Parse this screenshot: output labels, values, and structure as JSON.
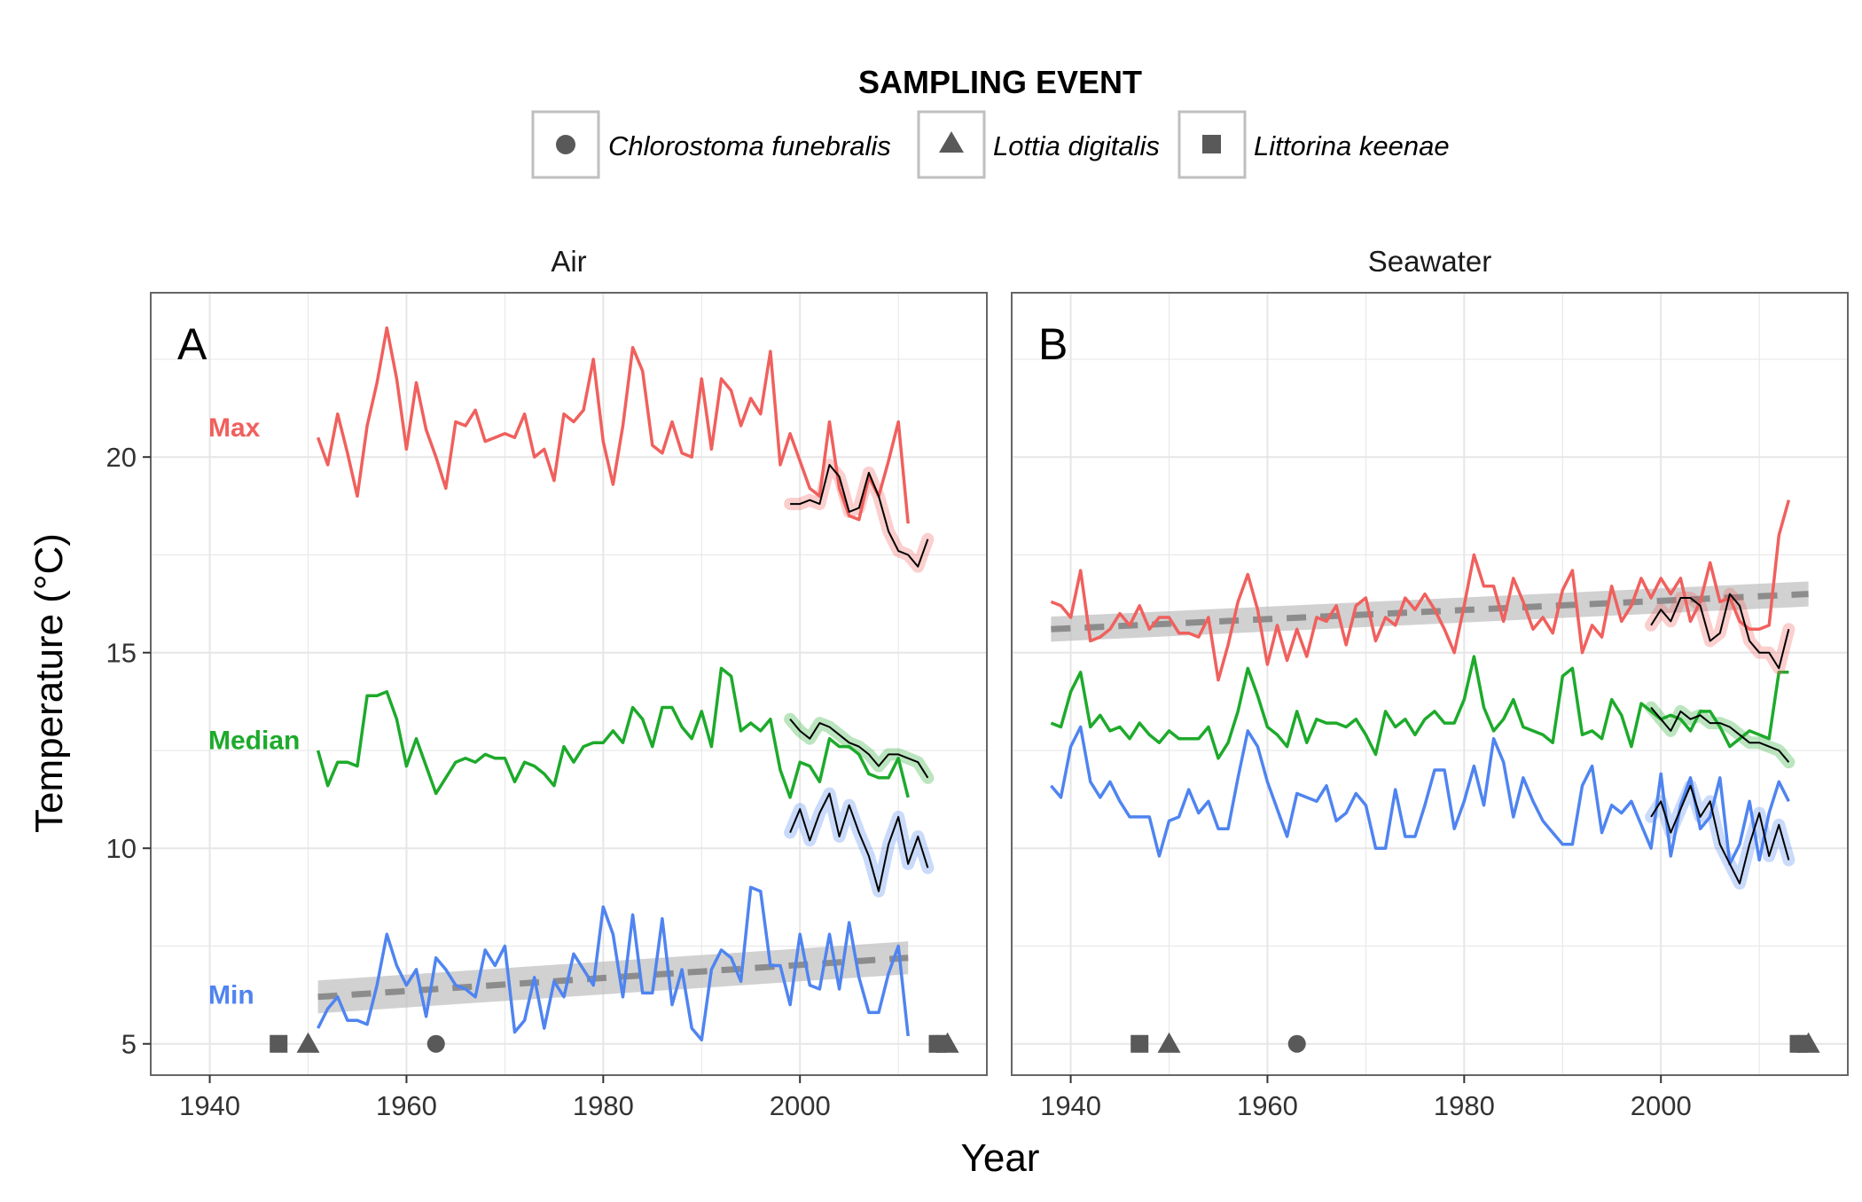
{
  "legend": {
    "title": "SAMPLING EVENT",
    "items": [
      {
        "label": "Chlorostoma funebralis",
        "shape": "circle"
      },
      {
        "label": "Lottia digitalis",
        "shape": "triangle"
      },
      {
        "label": "Littorina keenae",
        "shape": "square"
      }
    ],
    "position": "top"
  },
  "series_labels": [
    {
      "text": "Max",
      "color": "#F0605D"
    },
    {
      "text": "Median",
      "color": "#1DAA2B"
    },
    {
      "text": "Min",
      "color": "#4F84F0"
    }
  ],
  "colors": {
    "max": "#F0605D",
    "median": "#1DAA2B",
    "min": "#4F84F0",
    "rolling": "#000000",
    "trend": "#8c8c8c",
    "trend_band": "#bdbdbd",
    "marker": "#595959",
    "grid": "#e6e6e6",
    "panel_border": "#666666"
  },
  "axes": {
    "xlabel": "Year",
    "ylabel": "Temperature (°C)"
  },
  "chart_data": [
    {
      "type": "line",
      "panel_letter": "A",
      "strip_title": "Air",
      "x_ticks": [
        1940,
        1960,
        1980,
        2000
      ],
      "y_ticks": [
        5,
        10,
        15,
        20
      ],
      "xlim": [
        1934,
        2019
      ],
      "ylim": [
        4.2,
        24.2
      ],
      "grid": true,
      "series": [
        {
          "key": "max",
          "x_start": 1951,
          "values": [
            20.5,
            19.8,
            21.1,
            20.1,
            19.0,
            20.8,
            21.9,
            23.3,
            22.0,
            20.2,
            21.9,
            20.7,
            20.0,
            19.2,
            20.9,
            20.8,
            21.2,
            20.4,
            20.5,
            20.6,
            20.5,
            21.1,
            20.0,
            20.2,
            19.4,
            21.1,
            20.9,
            21.2,
            22.5,
            20.4,
            19.3,
            20.8,
            22.8,
            22.2,
            20.3,
            20.1,
            20.9,
            20.1,
            20.0,
            22.0,
            20.2,
            22.0,
            21.7,
            20.8,
            21.5,
            21.1,
            22.7,
            19.8,
            20.6,
            19.9,
            19.2,
            19.0,
            20.9,
            19.2,
            18.5,
            18.4,
            19.5,
            19.0,
            19.9,
            20.9,
            18.3
          ]
        },
        {
          "key": "median",
          "x_start": 1951,
          "values": [
            12.5,
            11.6,
            12.2,
            12.2,
            12.1,
            13.9,
            13.9,
            14.0,
            13.3,
            12.1,
            12.8,
            12.1,
            11.4,
            11.8,
            12.2,
            12.3,
            12.2,
            12.4,
            12.3,
            12.3,
            11.7,
            12.2,
            12.1,
            11.9,
            11.6,
            12.6,
            12.2,
            12.6,
            12.7,
            12.7,
            13.0,
            12.7,
            13.6,
            13.3,
            12.6,
            13.6,
            13.6,
            13.1,
            12.8,
            13.5,
            12.6,
            14.6,
            14.4,
            13.0,
            13.2,
            13.0,
            13.3,
            12.0,
            11.3,
            12.2,
            12.1,
            11.7,
            12.8,
            12.6,
            12.6,
            12.4,
            11.9,
            11.8,
            11.8,
            12.3,
            11.3
          ]
        },
        {
          "key": "min",
          "x_start": 1951,
          "values": [
            5.4,
            5.9,
            6.2,
            5.6,
            5.6,
            5.5,
            6.5,
            7.8,
            7.0,
            6.5,
            6.9,
            5.7,
            7.2,
            6.9,
            6.5,
            6.4,
            6.2,
            7.4,
            7.0,
            7.5,
            5.3,
            5.6,
            6.7,
            5.4,
            6.6,
            6.2,
            7.3,
            6.9,
            6.5,
            8.5,
            7.8,
            6.2,
            8.3,
            6.3,
            6.3,
            8.2,
            6.0,
            6.9,
            5.4,
            5.1,
            6.9,
            7.4,
            7.2,
            6.6,
            9.0,
            8.9,
            7.0,
            7.0,
            6.0,
            7.8,
            6.5,
            6.4,
            7.8,
            6.4,
            8.1,
            6.7,
            5.8,
            5.8,
            6.8,
            7.5,
            5.2
          ]
        },
        {
          "key": "max_rolling",
          "x_start": 1999,
          "values": [
            18.8,
            18.8,
            18.9,
            18.8,
            19.8,
            19.5,
            18.6,
            18.7,
            19.6,
            19.0,
            18.1,
            17.6,
            17.5,
            17.2,
            17.9
          ]
        },
        {
          "key": "median_rolling",
          "x_start": 1999,
          "values": [
            13.3,
            13.0,
            12.8,
            13.2,
            13.1,
            12.9,
            12.7,
            12.6,
            12.4,
            12.1,
            12.4,
            12.4,
            12.3,
            12.2,
            11.8
          ]
        },
        {
          "key": "min_rolling",
          "x_start": 1999,
          "values": [
            10.4,
            11.0,
            10.2,
            10.9,
            11.4,
            10.3,
            11.1,
            10.4,
            9.8,
            8.9,
            10.1,
            10.8,
            9.6,
            10.3,
            9.5
          ]
        }
      ],
      "trend": {
        "key": "min",
        "x": [
          1951,
          2011
        ],
        "y": [
          6.2,
          7.2
        ],
        "band_halfwidth": 0.42
      },
      "markers": [
        {
          "shape": "square",
          "x": 1947,
          "y": 5
        },
        {
          "shape": "triangle",
          "x": 1950,
          "y": 5
        },
        {
          "shape": "circle",
          "x": 1963,
          "y": 5
        },
        {
          "shape": "circle",
          "x": 2014,
          "y": 5
        },
        {
          "shape": "square",
          "x": 2014,
          "y": 5
        },
        {
          "shape": "triangle",
          "x": 2015,
          "y": 5
        }
      ]
    },
    {
      "type": "line",
      "panel_letter": "B",
      "strip_title": "Seawater",
      "x_ticks": [
        1940,
        1960,
        1980,
        2000
      ],
      "y_ticks": [
        5,
        10,
        15,
        20
      ],
      "xlim": [
        1934,
        2019
      ],
      "ylim": [
        4.2,
        24.2
      ],
      "grid": true,
      "series": [
        {
          "key": "max",
          "x_start": 1938,
          "values": [
            16.3,
            16.2,
            15.9,
            17.1,
            15.3,
            15.4,
            15.6,
            16.0,
            15.7,
            16.2,
            15.6,
            15.9,
            15.9,
            15.5,
            15.5,
            15.4,
            15.9,
            14.3,
            15.2,
            16.3,
            17.0,
            16.1,
            14.7,
            15.7,
            14.8,
            15.6,
            14.9,
            15.9,
            15.8,
            16.2,
            15.2,
            16.2,
            16.4,
            15.3,
            15.9,
            15.7,
            16.4,
            16.1,
            16.5,
            16.1,
            15.6,
            15.0,
            16.2,
            17.5,
            16.7,
            16.7,
            15.8,
            16.9,
            16.3,
            15.6,
            15.9,
            15.5,
            16.6,
            17.1,
            15.0,
            15.7,
            15.4,
            16.7,
            15.8,
            16.2,
            16.9,
            16.4,
            16.9,
            16.5,
            16.9,
            15.8,
            16.3,
            17.3,
            16.3,
            16.4,
            15.8,
            15.6,
            15.6,
            15.7,
            18.0,
            18.9
          ]
        },
        {
          "key": "median",
          "x_start": 1938,
          "values": [
            13.2,
            13.1,
            14.0,
            14.5,
            13.1,
            13.4,
            13.0,
            13.1,
            12.8,
            13.2,
            12.9,
            12.7,
            13.0,
            12.8,
            12.8,
            12.8,
            13.1,
            12.3,
            12.7,
            13.5,
            14.6,
            13.9,
            13.1,
            12.9,
            12.6,
            13.5,
            12.7,
            13.3,
            13.2,
            13.2,
            13.1,
            13.3,
            12.9,
            12.4,
            13.5,
            13.1,
            13.3,
            12.9,
            13.3,
            13.5,
            13.2,
            13.2,
            13.8,
            14.9,
            13.6,
            13.0,
            13.3,
            13.8,
            13.1,
            13.0,
            12.9,
            12.7,
            14.4,
            14.6,
            12.9,
            13.0,
            12.8,
            13.8,
            13.4,
            12.6,
            13.7,
            13.5,
            13.3,
            13.4,
            13.3,
            13.0,
            13.5,
            13.5,
            13.1,
            12.6,
            12.8,
            13.0,
            12.9,
            12.8,
            14.5,
            14.5
          ]
        },
        {
          "key": "min",
          "x_start": 1938,
          "values": [
            11.6,
            11.3,
            12.6,
            13.1,
            11.7,
            11.3,
            11.7,
            11.2,
            10.8,
            10.8,
            10.8,
            9.8,
            10.7,
            10.8,
            11.5,
            10.9,
            11.2,
            10.5,
            10.5,
            11.8,
            13.0,
            12.6,
            11.7,
            11.0,
            10.3,
            11.4,
            11.3,
            11.2,
            11.6,
            10.7,
            10.9,
            11.4,
            11.1,
            10.0,
            10.0,
            11.5,
            10.3,
            10.3,
            11.1,
            12.0,
            12.0,
            10.5,
            11.2,
            12.1,
            11.1,
            12.8,
            12.2,
            10.8,
            11.8,
            11.2,
            10.7,
            10.4,
            10.1,
            10.1,
            11.6,
            12.1,
            10.4,
            11.1,
            10.9,
            11.2,
            10.6,
            10.0,
            11.9,
            9.8,
            11.1,
            11.8,
            10.5,
            10.8,
            11.8,
            9.6,
            10.1,
            11.2,
            9.7,
            10.9,
            11.7,
            11.2
          ]
        },
        {
          "key": "max_rolling",
          "x_start": 1999,
          "values": [
            15.7,
            16.1,
            15.8,
            16.4,
            16.4,
            16.2,
            15.3,
            15.5,
            16.5,
            16.2,
            15.3,
            15.0,
            15.0,
            14.6,
            15.6
          ]
        },
        {
          "key": "median_rolling",
          "x_start": 1999,
          "values": [
            13.6,
            13.3,
            13.0,
            13.5,
            13.3,
            13.4,
            13.2,
            13.2,
            13.1,
            12.9,
            12.7,
            12.7,
            12.6,
            12.5,
            12.2
          ]
        },
        {
          "key": "min_rolling",
          "x_start": 1999,
          "values": [
            10.8,
            11.2,
            10.4,
            11.0,
            11.6,
            10.8,
            11.2,
            10.1,
            9.6,
            9.1,
            10.1,
            10.9,
            9.8,
            10.6,
            9.7
          ]
        }
      ],
      "trend": {
        "key": "max",
        "x": [
          1938,
          2015
        ],
        "y": [
          15.6,
          16.5
        ],
        "band_halfwidth": 0.32
      },
      "markers": [
        {
          "shape": "square",
          "x": 1947,
          "y": 5
        },
        {
          "shape": "triangle",
          "x": 1950,
          "y": 5
        },
        {
          "shape": "circle",
          "x": 1963,
          "y": 5
        },
        {
          "shape": "circle",
          "x": 2014,
          "y": 5
        },
        {
          "shape": "square",
          "x": 2014,
          "y": 5
        },
        {
          "shape": "triangle",
          "x": 2015,
          "y": 5
        }
      ]
    }
  ]
}
